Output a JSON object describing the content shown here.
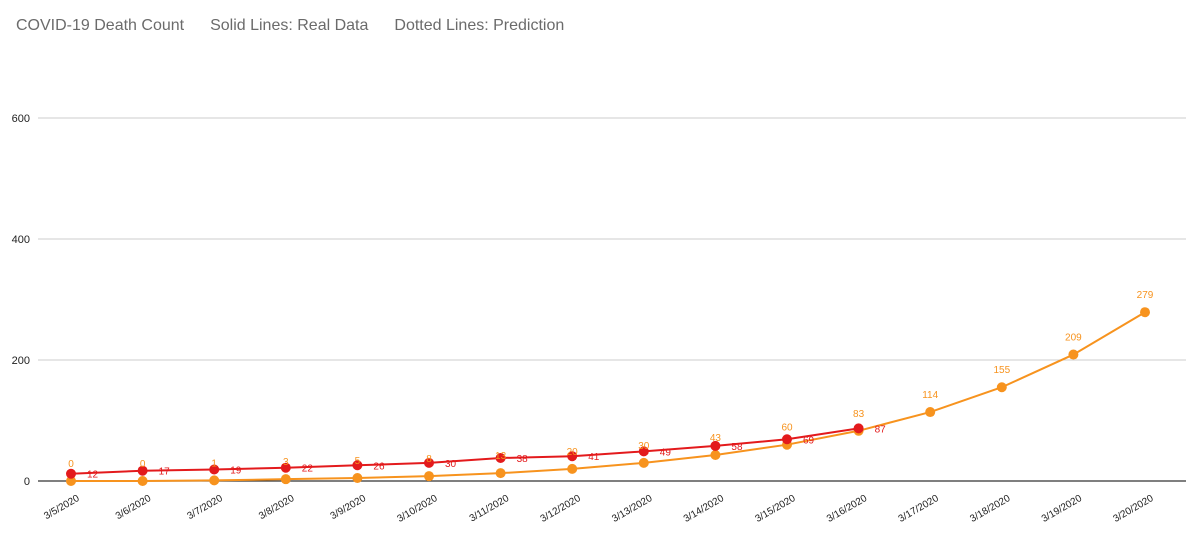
{
  "chart_data": {
    "type": "line",
    "title": "COVID-19 Death Count",
    "subtitle_solid": "Solid Lines: Real Data",
    "subtitle_dotted": "Dotted Lines: Prediction",
    "xlabel": "",
    "ylabel": "",
    "ylim": [
      0,
      600
    ],
    "yticks": [
      0,
      200,
      400,
      600
    ],
    "grid": true,
    "categories": [
      "3/5/2020",
      "3/6/2020",
      "3/7/2020",
      "3/8/2020",
      "3/9/2020",
      "3/10/2020",
      "3/11/2020",
      "3/12/2020",
      "3/13/2020",
      "3/14/2020",
      "3/15/2020",
      "3/16/2020",
      "3/17/2020",
      "3/18/2020",
      "3/19/2020",
      "3/20/2020"
    ],
    "series": [
      {
        "name": "Real Data",
        "color": "#e31a1c",
        "values": [
          12,
          17,
          19,
          22,
          26,
          30,
          38,
          41,
          49,
          58,
          69,
          87,
          null,
          null,
          null,
          null
        ],
        "labels": [
          "12",
          "17",
          "19",
          "22",
          "26",
          "30",
          "38",
          "41",
          "49",
          "58",
          "69",
          "87",
          null,
          null,
          null,
          null
        ]
      },
      {
        "name": "Prediction",
        "color": "#f7931e",
        "values": [
          0,
          0,
          1,
          3,
          5,
          8,
          13,
          20,
          30,
          43,
          60,
          83,
          114,
          155,
          209,
          279
        ],
        "labels": [
          "0",
          "0",
          "1",
          "3",
          "5",
          "8",
          "13",
          "20",
          "30",
          "43",
          "60",
          "83",
          "114",
          "155",
          "209",
          "279"
        ]
      }
    ]
  }
}
